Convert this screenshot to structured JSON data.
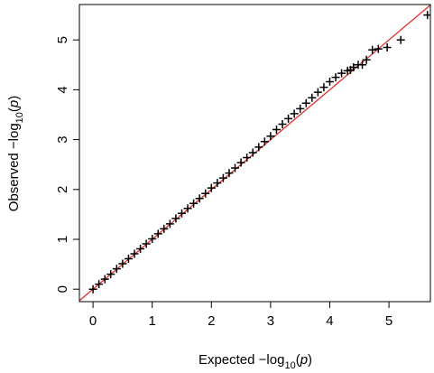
{
  "chart_data": {
    "type": "scatter",
    "marker": "+",
    "color": "#000000",
    "xlabel": [
      "Expected  −log",
      "10",
      "(",
      "p",
      ")"
    ],
    "ylabel": [
      "Observed  −log",
      "10",
      "(",
      "p",
      ")"
    ],
    "x": [
      0,
      0.1,
      0.2,
      0.3,
      0.4,
      0.5,
      0.6,
      0.7,
      0.8,
      0.9,
      1.0,
      1.1,
      1.2,
      1.3,
      1.4,
      1.5,
      1.6,
      1.7,
      1.8,
      1.9,
      2.0,
      2.1,
      2.2,
      2.3,
      2.4,
      2.5,
      2.6,
      2.7,
      2.8,
      2.9,
      3.0,
      3.1,
      3.2,
      3.3,
      3.4,
      3.5,
      3.6,
      3.7,
      3.8,
      3.9,
      4.0,
      4.1,
      4.2,
      4.3,
      4.35,
      4.4,
      4.48,
      4.55,
      4.62,
      4.72,
      4.82,
      4.97,
      5.2,
      5.65
    ],
    "values": [
      0.0,
      0.1,
      0.2,
      0.3,
      0.41,
      0.51,
      0.61,
      0.71,
      0.81,
      0.91,
      1.01,
      1.11,
      1.21,
      1.31,
      1.42,
      1.52,
      1.62,
      1.72,
      1.82,
      1.92,
      2.03,
      2.13,
      2.23,
      2.33,
      2.43,
      2.54,
      2.64,
      2.74,
      2.85,
      2.96,
      3.07,
      3.2,
      3.31,
      3.42,
      3.52,
      3.62,
      3.73,
      3.84,
      3.95,
      4.05,
      4.16,
      4.25,
      4.33,
      4.38,
      4.4,
      4.45,
      4.5,
      4.5,
      4.6,
      4.8,
      4.82,
      4.85,
      5.0,
      5.5
    ],
    "reference_line": {
      "intercept": 0,
      "slope": 1,
      "color": "#e0302a"
    },
    "xlim": [
      -0.23,
      5.7
    ],
    "ylim": [
      -0.25,
      5.71
    ],
    "xticks": [
      0,
      1,
      2,
      3,
      4,
      5
    ],
    "yticks": [
      0,
      1,
      2,
      3,
      4,
      5
    ]
  }
}
